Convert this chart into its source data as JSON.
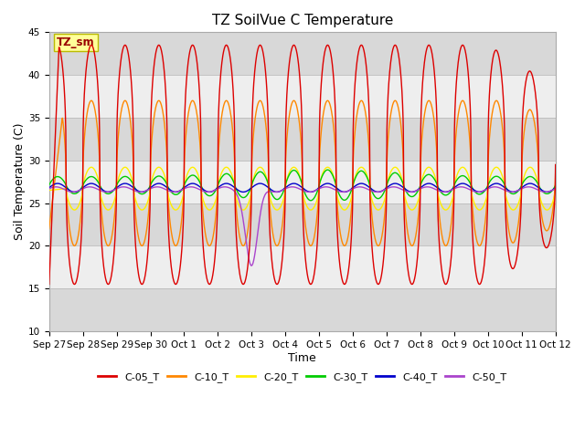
{
  "title": "TZ SoilVue C Temperature",
  "xlabel": "Time",
  "ylabel": "Soil Temperature (C)",
  "ylim": [
    10,
    45
  ],
  "yticks": [
    10,
    15,
    20,
    25,
    30,
    35,
    40,
    45
  ],
  "plot_bg": "#d8d8d8",
  "fig_bg": "#ffffff",
  "white_band_ranges": [
    [
      15,
      20
    ],
    [
      25,
      30
    ],
    [
      35,
      40
    ]
  ],
  "annotation_text": "TZ_sm",
  "annotation_box_color": "#ffff99",
  "annotation_border_color": "#bbbb00",
  "series_colors": {
    "C-05_T": "#dd0000",
    "C-10_T": "#ff8800",
    "C-20_T": "#ffee00",
    "C-30_T": "#00cc00",
    "C-40_T": "#0000cc",
    "C-50_T": "#aa44cc"
  },
  "series_linewidth": 1.0,
  "tick_fontsize": 7.5,
  "label_fontsize": 9
}
